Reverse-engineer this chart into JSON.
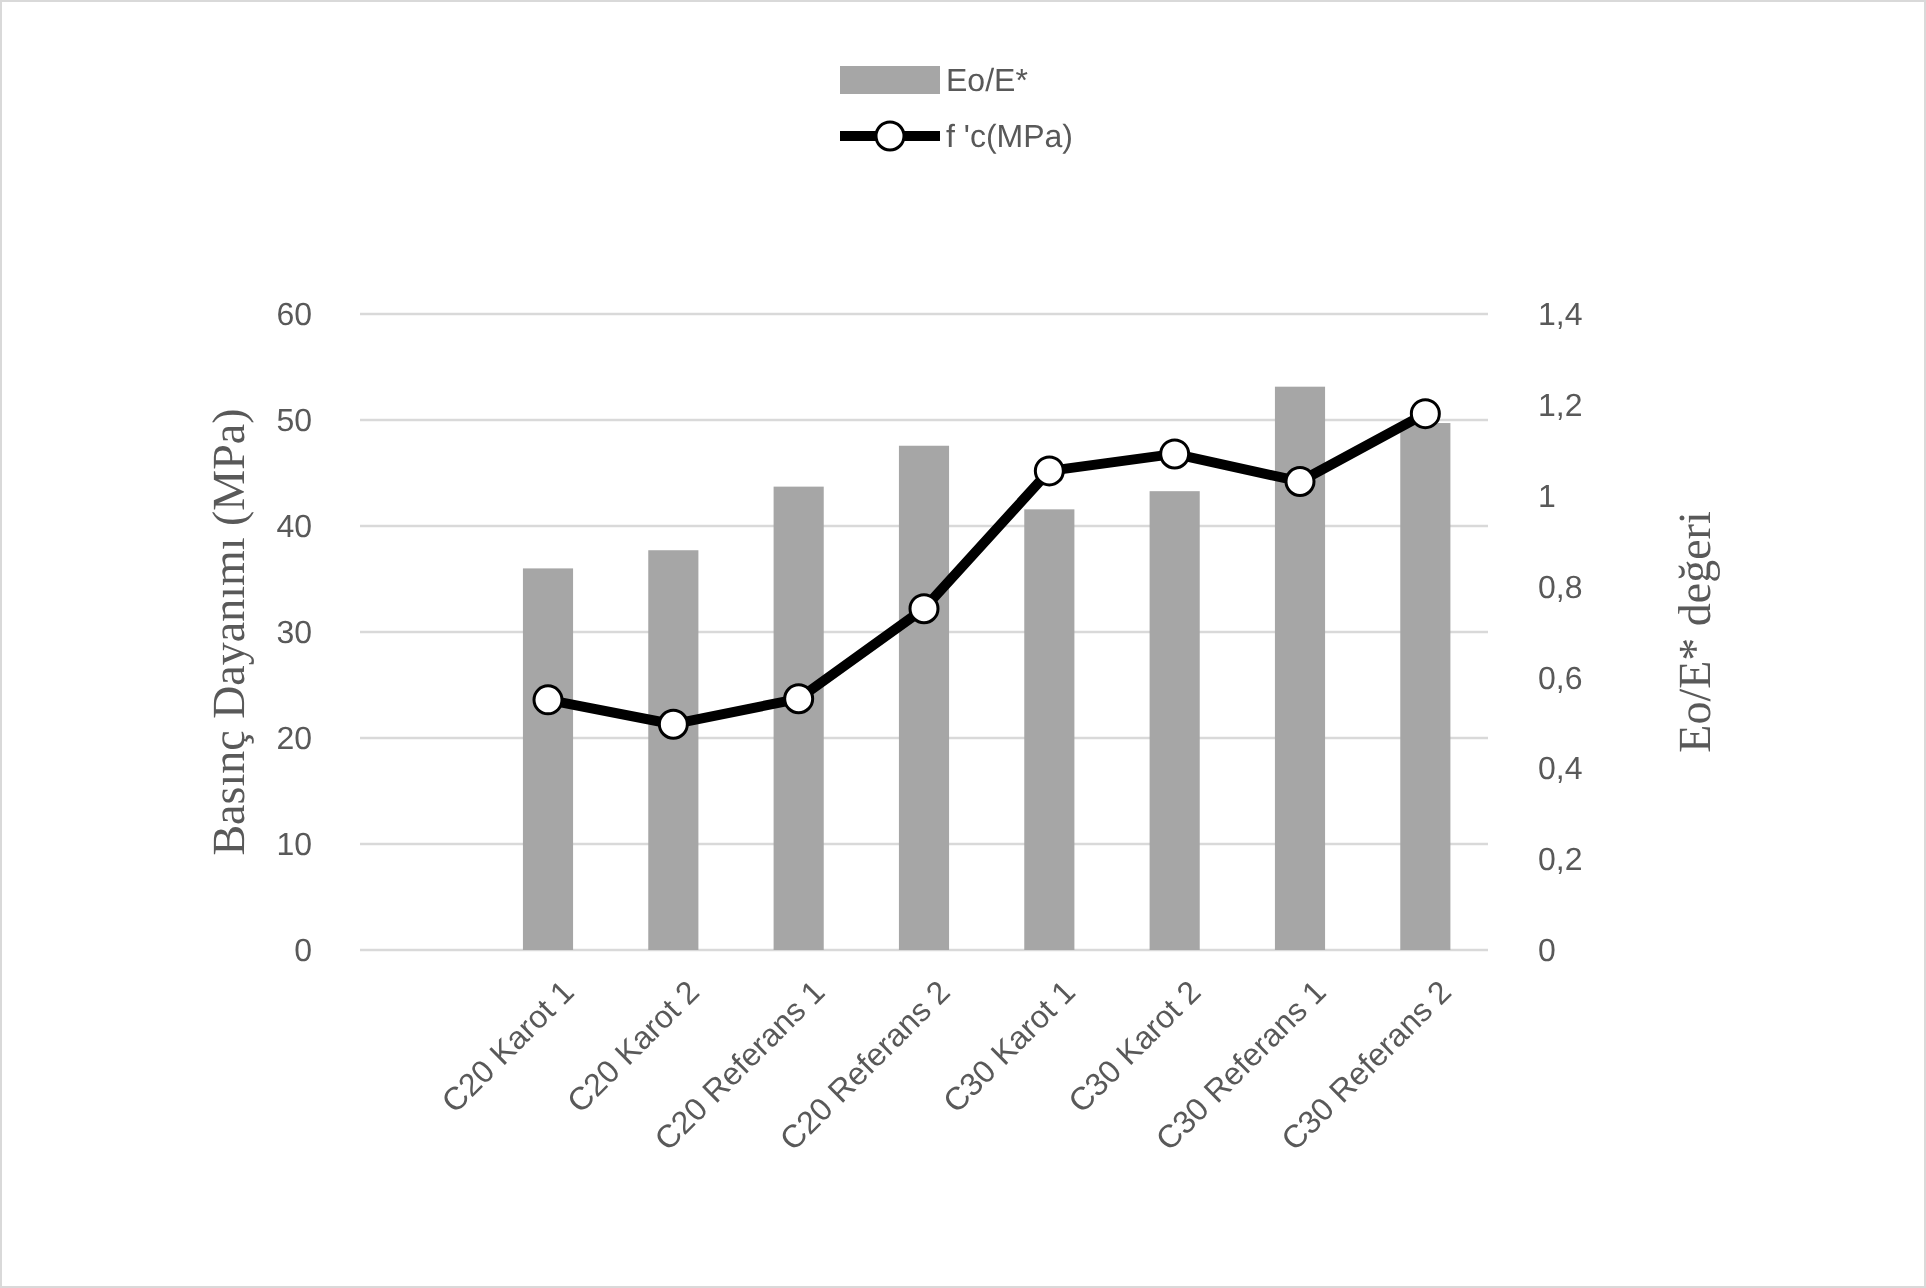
{
  "chart_data": {
    "type": "bar",
    "categories": [
      null,
      "C20 Karot 1",
      "C20 Karot 2",
      "C20 Referans 1",
      "C20 Referans 2",
      "C30 Karot 1",
      "C30 Karot 2",
      "C30 Referans 1",
      "C30 Referans 2"
    ],
    "ylabel": "Basınç Dayanımı (MPa)",
    "y2label": "Eo/E* değeri",
    "ylim": [
      0,
      60
    ],
    "yticks": [
      0,
      10,
      20,
      30,
      40,
      50,
      60
    ],
    "y2lim": [
      0,
      1.4
    ],
    "y2ticks": [
      {
        "value": 0,
        "label": "0"
      },
      {
        "value": 0.2,
        "label": "0,2"
      },
      {
        "value": 0.4,
        "label": "0,4"
      },
      {
        "value": 0.6,
        "label": "0,6"
      },
      {
        "value": 0.8,
        "label": "0,8"
      },
      {
        "value": 1,
        "label": "1"
      },
      {
        "value": 1.2,
        "label": "1,2"
      },
      {
        "value": 1.4,
        "label": "1,4"
      }
    ],
    "grid": "y",
    "legend": "top",
    "marker": "circle",
    "series": [
      {
        "name": "Eo/E*",
        "axis": "y2",
        "color": "#a6a6a6",
        "values": [
          null,
          0.84,
          0.88,
          1.02,
          1.11,
          0.97,
          1.01,
          1.24,
          1.16
        ]
      },
      {
        "name": "f 'c(MPa)",
        "type": "line",
        "axis": "y",
        "color": "#000000",
        "values": [
          null,
          23.6,
          21.3,
          23.7,
          32.2,
          45.2,
          46.8,
          44.2,
          50.6
        ]
      }
    ]
  }
}
